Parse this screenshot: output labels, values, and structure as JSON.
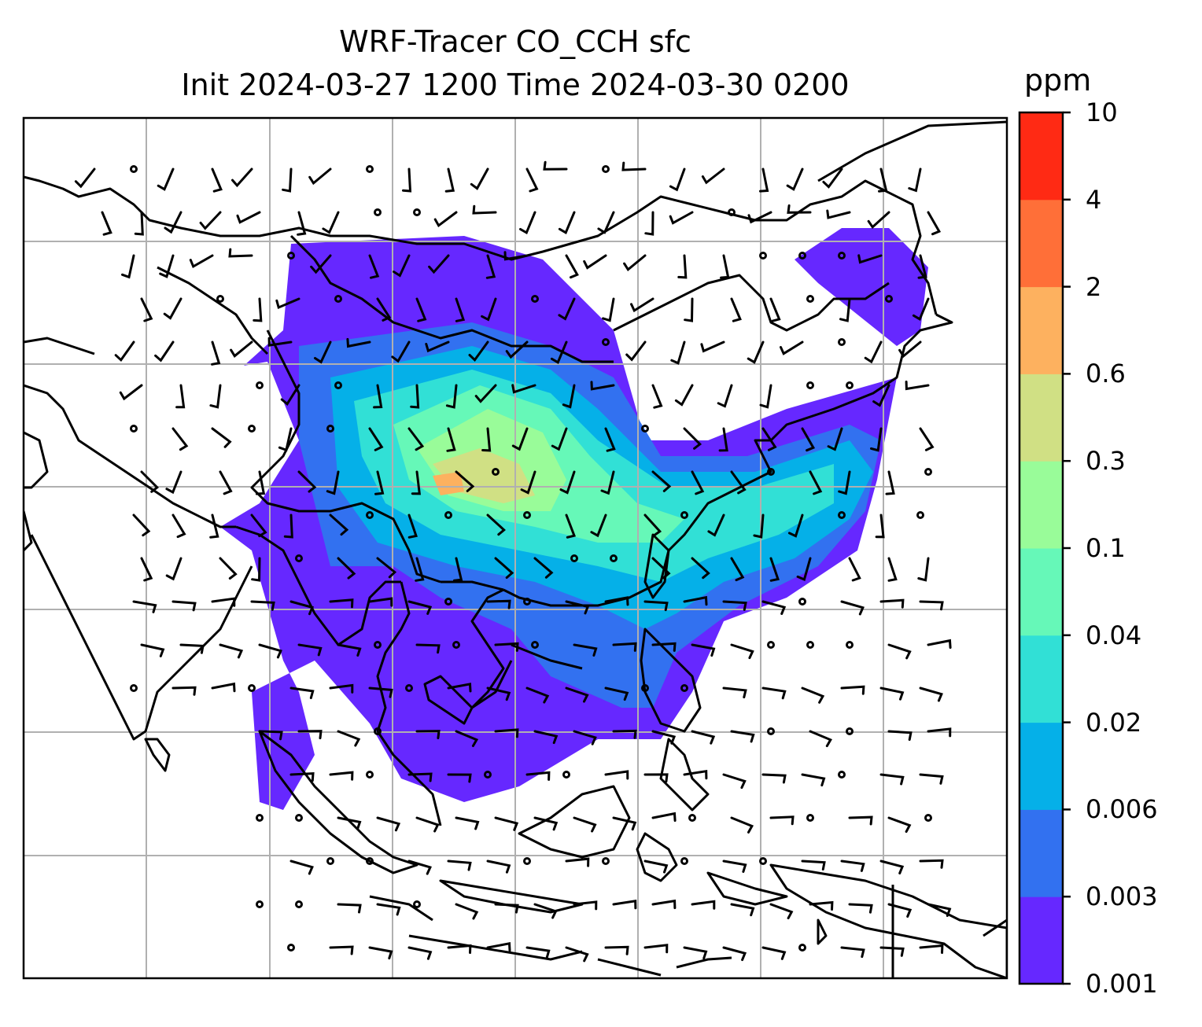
{
  "title": {
    "line1": "WRF-Tracer CO_CCH sfc",
    "line2": "Init 2024-03-27 1200 Time 2024-03-30 0200"
  },
  "colorbar": {
    "unit": "ppm",
    "levels": [
      "0.001",
      "0.003",
      "0.006",
      "0.02",
      "0.04",
      "0.1",
      "0.3",
      "0.6",
      "2",
      "4",
      "10"
    ],
    "colors": [
      "#6628ff",
      "#3271f0",
      "#05b0e8",
      "#31e0d6",
      "#66f8b8",
      "#99fc99",
      "#d0e084",
      "#fdb15f",
      "#ff6f38",
      "#ff2a14"
    ]
  },
  "map": {
    "gridlines": true,
    "overlay": "wind-barbs",
    "field": "CO_CCH tracer concentration"
  }
}
